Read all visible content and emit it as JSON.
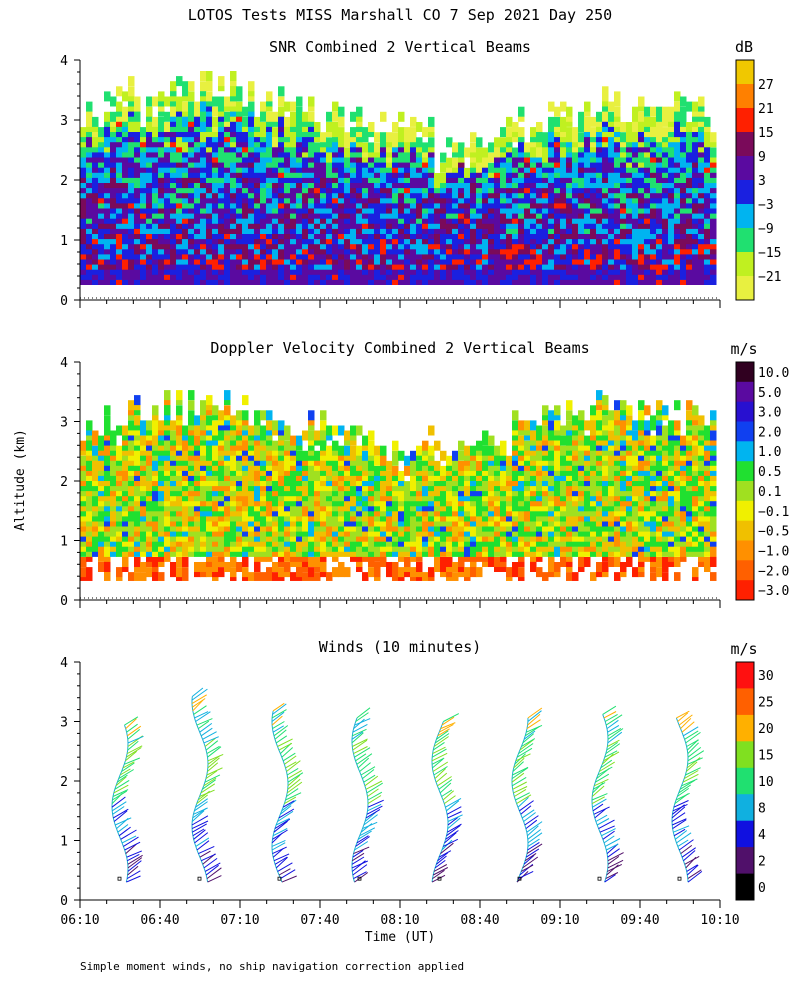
{
  "title": "LOTOS Tests MISS Marshall CO   7 Sep 2021 Day 250",
  "ylabel": "Altitude (km)",
  "xlabel": "Time (UT)",
  "footnote": "Simple moment winds, no ship navigation correction applied",
  "chart_data": [
    {
      "type": "heatmap",
      "title": "SNR Combined 2 Vertical Beams",
      "units": "dB",
      "x_range": [
        "06:10",
        "10:10"
      ],
      "ylim": [
        0,
        4
      ],
      "y_ticks": [
        "0",
        "1",
        "2",
        "3",
        "4"
      ],
      "colorbar": {
        "labels": [
          "27",
          "21",
          "15",
          "9",
          "3",
          "−3",
          "−9",
          "−15",
          "−21"
        ],
        "colors": [
          "#f0c800",
          "#ff8000",
          "#ff2000",
          "#7a0a5a",
          "#5a0aa0",
          "#1a20e0",
          "#00b4f0",
          "#20e070",
          "#c0f020",
          "#e8f040"
        ]
      },
      "data_extent_km": [
        0.25,
        3.5
      ],
      "description_levels": "SNR mostly between −21 and 9 dB, occasional peaks near 15 dB"
    },
    {
      "type": "heatmap",
      "title": "Doppler Velocity Combined 2 Vertical Beams",
      "units": "m/s",
      "x_range": [
        "06:10",
        "10:10"
      ],
      "ylim": [
        0,
        4
      ],
      "y_ticks": [
        "0",
        "1",
        "2",
        "3",
        "4"
      ],
      "colorbar": {
        "labels": [
          "10.0",
          "5.0",
          "3.0",
          "2.0",
          "1.0",
          "0.5",
          "0.1",
          "−0.1",
          "−0.5",
          "−1.0",
          "−2.0",
          "−3.0"
        ],
        "colors": [
          "#300020",
          "#5a0aa0",
          "#2810d0",
          "#1040f0",
          "#00b4f0",
          "#20e030",
          "#a0e020",
          "#f0f000",
          "#f0c000",
          "#ff9000",
          "#ff6000",
          "#ff2000"
        ]
      },
      "data_extent_km": [
        0.3,
        3.2
      ]
    },
    {
      "type": "scatter",
      "title": "Winds (10 minutes)",
      "units": "m/s",
      "xlim": [
        "06:10",
        "10:10"
      ],
      "x_ticks": [
        "06:10",
        "06:40",
        "07:10",
        "07:40",
        "08:10",
        "08:40",
        "09:10",
        "09:40",
        "10:10"
      ],
      "ylim": [
        0,
        4
      ],
      "y_ticks": [
        "0",
        "1",
        "2",
        "3",
        "4"
      ],
      "profile_times": [
        "06:25",
        "06:55",
        "07:25",
        "07:55",
        "08:25",
        "08:55",
        "09:25",
        "09:55"
      ],
      "profile_top_km": [
        2.95,
        3.45,
        3.2,
        3.1,
        3.05,
        3.1,
        3.15,
        3.1
      ],
      "colorbar": {
        "labels": [
          "30",
          "25",
          "20",
          "15",
          "10",
          "8",
          "4",
          "2",
          "0"
        ],
        "colors": [
          "#ff1010",
          "#ff6000",
          "#ffb000",
          "#80e020",
          "#20e070",
          "#10b0e0",
          "#1010e0",
          "#50106a",
          "#000000"
        ]
      }
    }
  ]
}
